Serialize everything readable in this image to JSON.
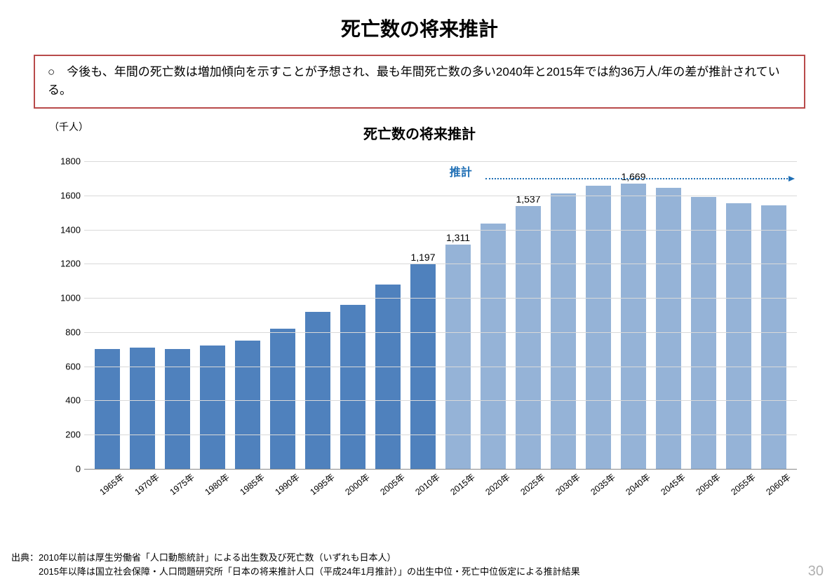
{
  "page_title": "死亡数の将来推計",
  "summary_box": {
    "border_color": "#b84a4a",
    "text": "○　今後も、年間の死亡数は増加傾向を示すことが予想され、最も年間死亡数の多い2040年と2015年では約36万人/年の差が推計されている。"
  },
  "chart": {
    "title": "死亡数の将来推計",
    "y_unit": "（千人）",
    "ylim": [
      0,
      1800
    ],
    "ytick_step": 200,
    "grid_color": "#d9d9d9",
    "tick_fontsize": 13,
    "actual_color": "#4f81bd",
    "estimate_color": "#95b3d7",
    "estimate_label": "推計",
    "estimate_label_color": "#1f6fb5",
    "categories": [
      "1965年",
      "1970年",
      "1975年",
      "1980年",
      "1985年",
      "1990年",
      "1995年",
      "2000年",
      "2005年",
      "2010年",
      "2015年",
      "2020年",
      "2025年",
      "2030年",
      "2035年",
      "2040年",
      "2045年",
      "2050年",
      "2055年",
      "2060年"
    ],
    "values": [
      700,
      710,
      700,
      720,
      750,
      820,
      920,
      960,
      1080,
      1197,
      1311,
      1435,
      1537,
      1610,
      1655,
      1669,
      1645,
      1590,
      1555,
      1540
    ],
    "is_estimate": [
      false,
      false,
      false,
      false,
      false,
      false,
      false,
      false,
      false,
      false,
      true,
      true,
      true,
      true,
      true,
      true,
      true,
      true,
      true,
      true
    ],
    "value_labels": {
      "9": "1,197",
      "10": "1,311",
      "12": "1,537",
      "15": "1,669"
    },
    "estimate_start_index": 10
  },
  "source": {
    "line1": "出典：2010年以前は厚生労働省「人口動態統計」による出生数及び死亡数（いずれも日本人）",
    "line2": "　　　2015年以降は国立社会保障・人口問題研究所「日本の将来推計人口（平成24年1月推計）」の出生中位・死亡中位仮定による推計結果"
  },
  "page_number": "30"
}
